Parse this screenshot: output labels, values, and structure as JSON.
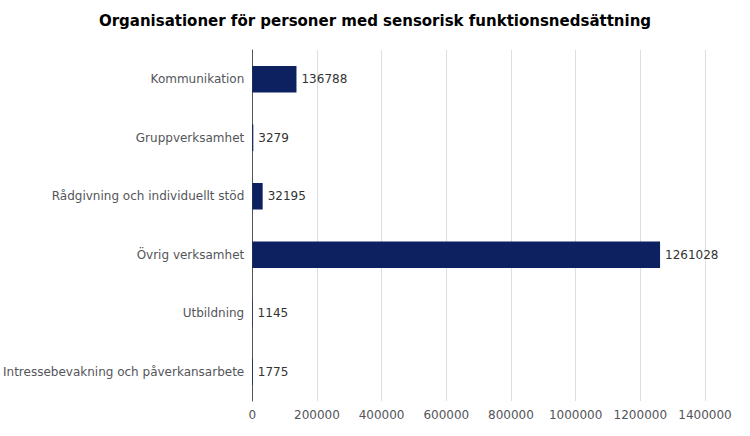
{
  "chart_data": {
    "type": "bar",
    "orientation": "horizontal",
    "title": "Organisationer för personer med sensorisk funktionsnedsättning",
    "categories": [
      "Kommunikation",
      "Gruppverksamhet",
      "Rådgivning och individuellt stöd",
      "Övrig verksamhet",
      "Utbildning",
      "Intressebevakning och påverkansarbete"
    ],
    "values": [
      136788,
      3279,
      32195,
      1261028,
      1145,
      1775
    ],
    "color": "#0d2060",
    "xlim": [
      0,
      1400000
    ],
    "xticks": [
      0,
      200000,
      400000,
      600000,
      800000,
      1000000,
      1200000,
      1400000
    ],
    "grid": true,
    "data_labels": true
  }
}
